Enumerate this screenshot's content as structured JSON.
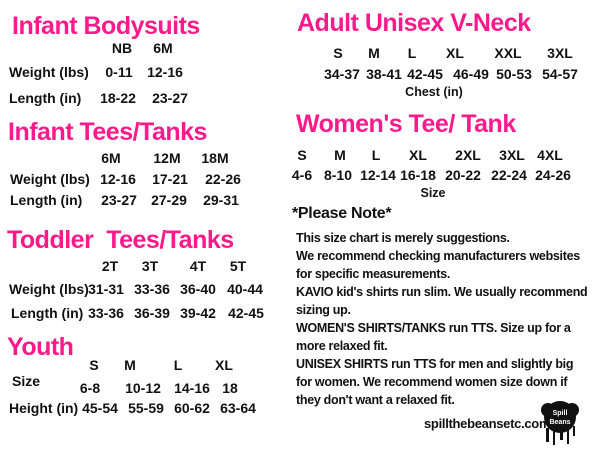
{
  "accent_color": "#ff1a8c",
  "infant_bodysuits": {
    "title": "Infant Bodysuits",
    "sizes": [
      "NB",
      "6M"
    ],
    "rows": [
      {
        "label": "Weight (lbs)",
        "values": [
          "0-11",
          "12-16"
        ]
      },
      {
        "label": "Length (in)",
        "values": [
          "18-22",
          "23-27"
        ]
      }
    ]
  },
  "infant_tees": {
    "title": "Infant Tees/Tanks",
    "sizes": [
      "6M",
      "12M",
      "18M"
    ],
    "rows": [
      {
        "label": "Weight (lbs)",
        "values": [
          "12-16",
          "17-21",
          "22-26"
        ]
      },
      {
        "label": "Length (in)",
        "values": [
          "23-27",
          "27-29",
          "29-31"
        ]
      }
    ]
  },
  "toddler_tees": {
    "title": "Toddler  Tees/Tanks",
    "sizes": [
      "2T",
      "3T",
      "4T",
      "5T"
    ],
    "rows": [
      {
        "label": "Weight (lbs)",
        "values": [
          "31-31",
          "33-36",
          "36-40",
          "40-44"
        ]
      },
      {
        "label": "Length (in)",
        "values": [
          "33-36",
          "36-39",
          "39-42",
          "42-45"
        ]
      }
    ]
  },
  "youth": {
    "title": "Youth",
    "sizes": [
      "S",
      "M",
      "L",
      "XL"
    ],
    "rows": [
      {
        "label": "Size",
        "values": [
          "6-8",
          "10-12",
          "14-16",
          "18"
        ]
      },
      {
        "label": "Height (in)",
        "values": [
          "45-54",
          "55-59",
          "60-62",
          "63-64"
        ]
      }
    ]
  },
  "adult_unisex": {
    "title": "Adult Unisex V-Neck",
    "sizes": [
      "S",
      "M",
      "L",
      "XL",
      "XXL",
      "3XL"
    ],
    "values": [
      "34-37",
      "38-41",
      "42-45",
      "46-49",
      "50-53",
      "54-57"
    ],
    "caption": "Chest (in)"
  },
  "womens_tee": {
    "title": "Women's Tee/ Tank",
    "sizes": [
      "S",
      "M",
      "L",
      "XL",
      "2XL",
      "3XL",
      "4XL"
    ],
    "values": [
      "4-6",
      "8-10",
      "12-14",
      "16-18",
      "20-22",
      "22-24",
      "24-26"
    ],
    "caption": "Size"
  },
  "note": {
    "heading": "*Please Note*",
    "line1": "This size chart is merely suggestions.",
    "line2": "We recommend checking manufacturers websites",
    "line3": "for specific measurements.",
    "line4_bold": "KAVIO",
    "line4": " kid's shirts run slim. We usually recommend",
    "line5": "sizing up.",
    "line6_bold": "WOMEN'S SHIRTS/TANKS",
    "line6": " run TTS. Size up for a",
    "line7": "more relaxed fit.",
    "line8_bold": "UNISEX SHIRTS",
    "line8": " run TTS for men and slightly big",
    "line9": "for women. We recommend women size down if",
    "line10": "they don't want a relaxed fit."
  },
  "footer": {
    "website": "spillthebeansetc.com",
    "logo_text": "Spill the Beans etc"
  }
}
